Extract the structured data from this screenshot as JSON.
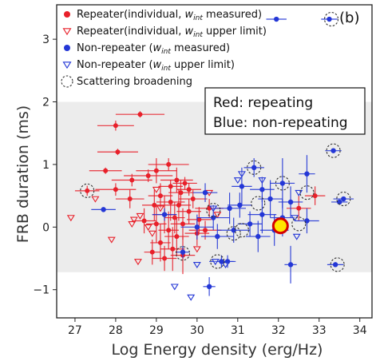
{
  "chart_data": {
    "type": "scatter",
    "panel_label": "(b)",
    "xlabel": "Log Energy density (erg/Hz)",
    "ylabel": "FRB duration (ms)",
    "xlim": [
      26.55,
      34.3
    ],
    "ylim": [
      -1.45,
      3.55
    ],
    "xticks": [
      "27",
      "28",
      "29",
      "30",
      "31",
      "32",
      "33",
      "34"
    ],
    "yticks": [
      "3",
      "2",
      "1",
      "0",
      "−1"
    ],
    "shaded_band": [
      -0.72,
      2.0
    ],
    "annotation": [
      "Red: repeating",
      "Blue: non-repeating"
    ],
    "legend": [
      {
        "label_parts": [
          "Repeater(individual, ",
          "w",
          "int",
          " measured)"
        ],
        "marker": "dot",
        "color": "#e8202a"
      },
      {
        "label_parts": [
          "Repeater(individual, ",
          "w",
          "int",
          " upper limit)"
        ],
        "marker": "triangle-down",
        "color": "#e8202a"
      },
      {
        "label_parts": [
          "Non-repeater (",
          "w",
          "int",
          " measured)"
        ],
        "marker": "dot",
        "color": "#2437d6"
      },
      {
        "label_parts": [
          "Non-repeater (",
          "w",
          "int",
          " upper limit)"
        ],
        "marker": "triangle-down",
        "color": "#2437d6"
      },
      {
        "label_parts": [
          "Scattering broadening",
          "",
          "",
          ""
        ],
        "marker": "dashed-circle",
        "color": "#333333"
      }
    ],
    "colors": {
      "repeater": "#e8202a",
      "non_repeater": "#2437d6",
      "highlight_fill": "#ffe600",
      "highlight_edge": "#d40000",
      "band": "#ececec"
    },
    "series": [
      {
        "name": "Repeater(individual, wint measured)",
        "points": [
          {
            "x": 28.0,
            "y": 1.62,
            "xerr": 0.45,
            "yerr": 0.08
          },
          {
            "x": 28.6,
            "y": 1.8,
            "xerr": 0.6,
            "yerr": 0.05
          },
          {
            "x": 28.05,
            "y": 1.2,
            "xerr": 0.5,
            "yerr": 0.05
          },
          {
            "x": 27.75,
            "y": 0.9,
            "xerr": 0.4,
            "yerr": 0.05
          },
          {
            "x": 27.3,
            "y": 0.58,
            "xerr": 0.3,
            "yerr": 0.08
          },
          {
            "x": 28.0,
            "y": 0.6,
            "xerr": 0.5,
            "yerr": 0.1
          },
          {
            "x": 28.4,
            "y": 0.75,
            "xerr": 0.5,
            "yerr": 0.1
          },
          {
            "x": 28.8,
            "y": 0.82,
            "xerr": 0.6,
            "yerr": 0.1
          },
          {
            "x": 29.0,
            "y": 0.9,
            "xerr": 0.5,
            "yerr": 0.2
          },
          {
            "x": 29.3,
            "y": 1.0,
            "xerr": 0.5,
            "yerr": 0.1
          },
          {
            "x": 29.5,
            "y": 0.75,
            "xerr": 0.4,
            "yerr": 0.2
          },
          {
            "x": 29.7,
            "y": 0.7,
            "xerr": 0.3,
            "yerr": 0.1
          },
          {
            "x": 29.8,
            "y": 0.6,
            "xerr": 0.3,
            "yerr": 0.1
          },
          {
            "x": 29.1,
            "y": 0.5,
            "xerr": 0.3,
            "yerr": 0.2
          },
          {
            "x": 29.35,
            "y": 0.4,
            "xerr": 0.35,
            "yerr": 0.3
          },
          {
            "x": 29.55,
            "y": 0.35,
            "xerr": 0.3,
            "yerr": 0.25
          },
          {
            "x": 29.2,
            "y": 0.2,
            "xerr": 0.3,
            "yerr": 0.3
          },
          {
            "x": 29.45,
            "y": 0.15,
            "xerr": 0.25,
            "yerr": 0.25
          },
          {
            "x": 29.65,
            "y": 0.05,
            "xerr": 0.3,
            "yerr": 0.25
          },
          {
            "x": 29.3,
            "y": -0.05,
            "xerr": 0.25,
            "yerr": 0.3
          },
          {
            "x": 29.5,
            "y": -0.15,
            "xerr": 0.3,
            "yerr": 0.3
          },
          {
            "x": 29.1,
            "y": -0.25,
            "xerr": 0.25,
            "yerr": 0.3
          },
          {
            "x": 29.4,
            "y": -0.35,
            "xerr": 0.3,
            "yerr": 0.35
          },
          {
            "x": 29.65,
            "y": -0.45,
            "xerr": 0.3,
            "yerr": 0.3
          },
          {
            "x": 29.8,
            "y": 0.25,
            "xerr": 0.3,
            "yerr": 0.2
          },
          {
            "x": 29.9,
            "y": 0.45,
            "xerr": 0.35,
            "yerr": 0.15
          },
          {
            "x": 30.05,
            "y": 0.12,
            "xerr": 0.3,
            "yerr": 0.2
          },
          {
            "x": 30.0,
            "y": -0.1,
            "xerr": 0.3,
            "yerr": 0.2
          },
          {
            "x": 30.2,
            "y": -0.05,
            "xerr": 0.4,
            "yerr": 0.15
          },
          {
            "x": 29.2,
            "y": -0.5,
            "xerr": 0.3,
            "yerr": 0.2
          },
          {
            "x": 29.35,
            "y": 0.65,
            "xerr": 0.3,
            "yerr": 0.1
          },
          {
            "x": 28.9,
            "y": -0.4,
            "xerr": 0.2,
            "yerr": 0.2
          },
          {
            "x": 28.95,
            "y": 0.35,
            "xerr": 0.3,
            "yerr": 0.25
          },
          {
            "x": 28.35,
            "y": 0.45,
            "xerr": 0.35,
            "yerr": 0.15
          },
          {
            "x": 29.0,
            "y": 0.05,
            "xerr": 0.25,
            "yerr": 0.3
          },
          {
            "x": 28.7,
            "y": 0.1,
            "xerr": 0.3,
            "yerr": 0.2
          },
          {
            "x": 29.6,
            "y": 0.55,
            "xerr": 0.3,
            "yerr": 0.2
          },
          {
            "x": 30.3,
            "y": 0.3,
            "xerr": 0.35,
            "yerr": 0.15
          },
          {
            "x": 32.5,
            "y": 0.3,
            "xerr": 0.3,
            "yerr": 0.2
          },
          {
            "x": 32.9,
            "y": 0.5,
            "xerr": 0.25,
            "yerr": 0.15
          }
        ]
      },
      {
        "name": "Repeater(individual, wint upper limit)",
        "points": [
          {
            "x": 26.9,
            "y": 0.15
          },
          {
            "x": 27.5,
            "y": 0.45
          },
          {
            "x": 27.9,
            "y": -0.2
          },
          {
            "x": 28.4,
            "y": 0.05
          },
          {
            "x": 28.55,
            "y": -0.55
          },
          {
            "x": 28.8,
            "y": 0.0
          },
          {
            "x": 28.6,
            "y": 0.18
          },
          {
            "x": 28.9,
            "y": -0.1
          },
          {
            "x": 29.1,
            "y": 0.3
          },
          {
            "x": 29.0,
            "y": 0.6
          },
          {
            "x": 30.3,
            "y": 0.55
          },
          {
            "x": 30.5,
            "y": 0.2
          },
          {
            "x": 30.0,
            "y": -0.35
          },
          {
            "x": 28.45,
            "y": 0.12
          }
        ]
      },
      {
        "name": "Non-repeater (wint measured)",
        "points": [
          {
            "x": 31.95,
            "y": 3.32,
            "xerr": 0.25,
            "yerr": 0.0
          },
          {
            "x": 33.25,
            "y": 3.32,
            "xerr": 0.2,
            "yerr": 0.0
          },
          {
            "x": 33.35,
            "y": 1.22,
            "xerr": 0.2,
            "yerr": 0.0
          },
          {
            "x": 33.6,
            "y": 0.45,
            "xerr": 0.25,
            "yerr": 0.0
          },
          {
            "x": 31.4,
            "y": 0.95,
            "xerr": 0.25,
            "yerr": 0.15
          },
          {
            "x": 31.1,
            "y": 0.65,
            "xerr": 0.25,
            "yerr": 0.3
          },
          {
            "x": 32.1,
            "y": 0.7,
            "xerr": 0.3,
            "yerr": 0.4
          },
          {
            "x": 32.7,
            "y": 0.85,
            "xerr": 0.2,
            "yerr": 0.3
          },
          {
            "x": 31.8,
            "y": 0.45,
            "xerr": 0.3,
            "yerr": 0.3
          },
          {
            "x": 32.3,
            "y": 0.4,
            "xerr": 0.3,
            "yerr": 0.25
          },
          {
            "x": 31.6,
            "y": 0.2,
            "xerr": 0.35,
            "yerr": 0.3
          },
          {
            "x": 31.3,
            "y": 0.05,
            "xerr": 0.3,
            "yerr": 0.2
          },
          {
            "x": 30.8,
            "y": 0.3,
            "xerr": 0.4,
            "yerr": 0.25
          },
          {
            "x": 30.4,
            "y": 0.15,
            "xerr": 0.4,
            "yerr": 0.2
          },
          {
            "x": 30.0,
            "y": 0.0,
            "xerr": 0.4,
            "yerr": 0.2
          },
          {
            "x": 30.5,
            "y": -0.15,
            "xerr": 0.4,
            "yerr": 0.2
          },
          {
            "x": 30.9,
            "y": -0.05,
            "xerr": 0.4,
            "yerr": 0.2
          },
          {
            "x": 31.5,
            "y": -0.15,
            "xerr": 0.3,
            "yerr": 0.25
          },
          {
            "x": 30.75,
            "y": -0.55,
            "xerr": 0.2,
            "yerr": 0.1
          },
          {
            "x": 30.6,
            "y": -0.55,
            "xerr": 0.3,
            "yerr": 0.1
          },
          {
            "x": 30.3,
            "y": -0.95,
            "xerr": 0.15,
            "yerr": 0.15
          },
          {
            "x": 29.65,
            "y": -0.4,
            "xerr": 0.15,
            "yerr": 0.1
          },
          {
            "x": 32.3,
            "y": -0.6,
            "xerr": 0.15,
            "yerr": 0.3
          },
          {
            "x": 32.7,
            "y": 0.1,
            "xerr": 0.3,
            "yerr": 0.2
          },
          {
            "x": 31.9,
            "y": -0.05,
            "xerr": 0.35,
            "yerr": 0.25
          },
          {
            "x": 31.6,
            "y": 0.6,
            "xerr": 0.3,
            "yerr": 0.2
          },
          {
            "x": 32.1,
            "y": 0.15,
            "xerr": 0.3,
            "yerr": 0.3
          },
          {
            "x": 27.7,
            "y": 0.28,
            "xerr": 0.3,
            "yerr": 0.0
          },
          {
            "x": 29.2,
            "y": 0.2,
            "xerr": 0.3,
            "yerr": 0.1
          },
          {
            "x": 31.05,
            "y": 0.35,
            "xerr": 0.3,
            "yerr": 0.2
          },
          {
            "x": 33.5,
            "y": 0.4,
            "xerr": 0.2,
            "yerr": 0.0
          },
          {
            "x": 33.4,
            "y": -0.6,
            "xerr": 0.2,
            "yerr": 0.0
          },
          {
            "x": 30.2,
            "y": 0.55,
            "xerr": 0.3,
            "yerr": 0.15
          }
        ]
      },
      {
        "name": "Non-repeater (wint upper limit)",
        "points": [
          {
            "x": 29.45,
            "y": -0.95
          },
          {
            "x": 29.85,
            "y": -1.12
          },
          {
            "x": 30.0,
            "y": -0.6
          },
          {
            "x": 30.45,
            "y": -0.55
          },
          {
            "x": 31.1,
            "y": 0.85
          },
          {
            "x": 31.6,
            "y": 0.75
          },
          {
            "x": 32.5,
            "y": 0.55
          },
          {
            "x": 32.45,
            "y": -0.15
          },
          {
            "x": 31.0,
            "y": 0.75
          },
          {
            "x": 30.7,
            "y": -0.6
          },
          {
            "x": 32.4,
            "y": 0.15
          },
          {
            "x": 30.4,
            "y": 0.3
          }
        ]
      },
      {
        "name": "Scattering broadening",
        "points": [
          {
            "x": 27.3,
            "y": 0.58
          },
          {
            "x": 29.65,
            "y": -0.42
          },
          {
            "x": 30.4,
            "y": 0.27
          },
          {
            "x": 31.4,
            "y": 0.95
          },
          {
            "x": 31.1,
            "y": -0.05
          },
          {
            "x": 32.1,
            "y": 0.7
          },
          {
            "x": 32.7,
            "y": 0.55
          },
          {
            "x": 32.5,
            "y": 0.05
          },
          {
            "x": 33.35,
            "y": 1.22
          },
          {
            "x": 33.3,
            "y": 3.32
          },
          {
            "x": 33.6,
            "y": 0.45
          },
          {
            "x": 33.45,
            "y": -0.6
          },
          {
            "x": 30.5,
            "y": -0.55
          },
          {
            "x": 31.5,
            "y": 0.38
          },
          {
            "x": 30.9,
            "y": -0.1
          }
        ]
      },
      {
        "name": "",
        "points": [
          {
            "x": 32.05,
            "y": 0.02
          }
        ]
      }
    ]
  }
}
